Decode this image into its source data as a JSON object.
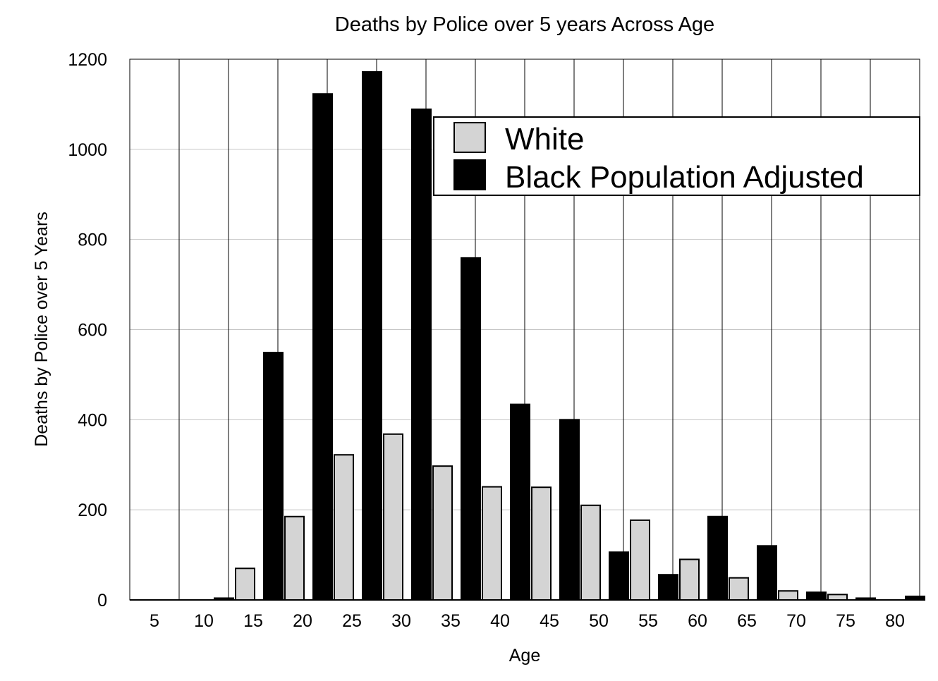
{
  "chart_data": {
    "type": "bar",
    "title": "Deaths by Police over 5 years Across Age",
    "xlabel": "Age",
    "ylabel": "Deaths by Police over 5 Years",
    "categories": [
      "5",
      "10",
      "15",
      "20",
      "25",
      "30",
      "35",
      "40",
      "45",
      "50",
      "55",
      "60",
      "65",
      "70",
      "75",
      "80"
    ],
    "series": [
      {
        "name": "White",
        "color": "#d4d4d4",
        "values": [
          0,
          0,
          70,
          185,
          322,
          368,
          297,
          251,
          250,
          210,
          177,
          90,
          49,
          20,
          12,
          0
        ]
      },
      {
        "name": "Black Population Adjusted",
        "color": "#000000",
        "values": [
          0,
          4,
          549,
          1123,
          1172,
          1089,
          759,
          434,
          400,
          106,
          56,
          185,
          120,
          17,
          4,
          8
        ]
      }
    ],
    "ylim": [
      0,
      1200
    ],
    "yticks": [
      0,
      200,
      400,
      600,
      800,
      1000,
      1200
    ],
    "grid": true,
    "legend_position": "top-right"
  }
}
